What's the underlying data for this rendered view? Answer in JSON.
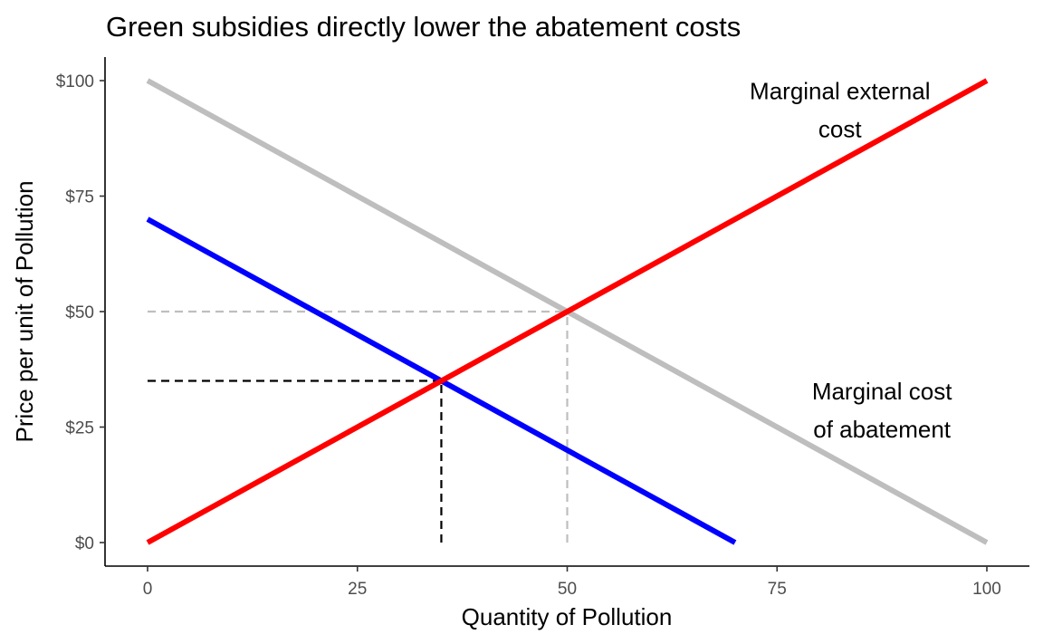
{
  "chart_data": {
    "type": "line",
    "title": "Green subsidies directly lower the abatement costs",
    "xlabel": "Quantity of Pollution",
    "ylabel": "Price per unit of Pollution",
    "xlim": [
      0,
      100
    ],
    "ylim": [
      0,
      100
    ],
    "x_ticks": [
      {
        "value": 0,
        "label": "0"
      },
      {
        "value": 25,
        "label": "25"
      },
      {
        "value": 50,
        "label": "50"
      },
      {
        "value": 75,
        "label": "75"
      },
      {
        "value": 100,
        "label": "100"
      }
    ],
    "y_ticks": [
      {
        "value": 0,
        "label": "$0"
      },
      {
        "value": 25,
        "label": "$25"
      },
      {
        "value": 50,
        "label": "$50"
      },
      {
        "value": 75,
        "label": "$75"
      },
      {
        "value": 100,
        "label": "$100"
      }
    ],
    "grid": false,
    "series": [
      {
        "key": "mac-original",
        "color": "#bebebe",
        "points": [
          [
            0,
            100
          ],
          [
            100,
            0
          ]
        ]
      },
      {
        "key": "mac-subsidized",
        "color": "#0000ff",
        "points": [
          [
            0,
            70
          ],
          [
            70,
            0
          ]
        ]
      },
      {
        "key": "mec",
        "color": "#ff0000",
        "points": [
          [
            0,
            0
          ],
          [
            100,
            100
          ]
        ]
      }
    ],
    "reference_lines": [
      {
        "key": "orig-price",
        "color": "#bebebe",
        "points": [
          [
            0,
            50
          ],
          [
            50,
            50
          ]
        ]
      },
      {
        "key": "orig-quantity",
        "color": "#bebebe",
        "points": [
          [
            50,
            0
          ],
          [
            50,
            50
          ]
        ]
      },
      {
        "key": "new-price",
        "color": "#000000",
        "points": [
          [
            0,
            35
          ],
          [
            35,
            35
          ]
        ]
      },
      {
        "key": "new-quantity",
        "color": "#000000",
        "points": [
          [
            35,
            0
          ],
          [
            35,
            35
          ]
        ]
      }
    ],
    "annotations": [
      {
        "key": "mec-label",
        "lines": [
          "Marginal external",
          "cost"
        ],
        "x": 82.5,
        "y": 96
      },
      {
        "key": "mac-label",
        "lines": [
          "Marginal cost",
          "of abatement"
        ],
        "x": 87.5,
        "y": 31
      }
    ]
  }
}
